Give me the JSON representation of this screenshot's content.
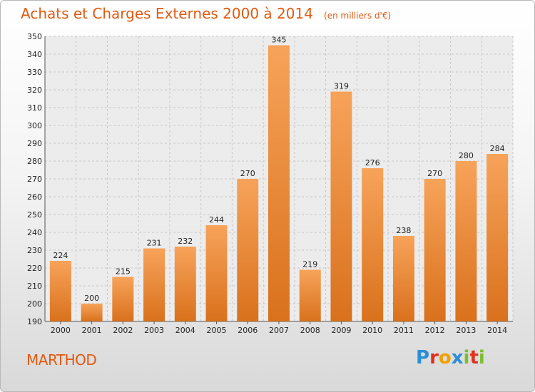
{
  "header": {
    "title": "Achats et Charges Externes 2000 à 2014",
    "subtitle": "(en milliers d'€)"
  },
  "footer": {
    "commune": "MARTHOD",
    "logo": "Proxiti"
  },
  "colors": {
    "accent": "#e05a12",
    "bar_top": "#f7a35a",
    "bar_bottom": "#d9711c",
    "logo_letters": [
      "#2a8fd6",
      "#e0301e",
      "#f0a000",
      "#2a8fd6",
      "#7cbf2a",
      "#e0301e",
      "#7cbf2a"
    ]
  },
  "chart_data": {
    "type": "bar",
    "title": "Achats et Charges Externes 2000 à 2014",
    "subtitle": "(en milliers d'€)",
    "categories": [
      "2000",
      "2001",
      "2002",
      "2003",
      "2004",
      "2005",
      "2006",
      "2007",
      "2008",
      "2009",
      "2010",
      "2011",
      "2012",
      "2013",
      "2014"
    ],
    "values": [
      224,
      200,
      215,
      231,
      232,
      244,
      270,
      345,
      219,
      319,
      276,
      238,
      270,
      280,
      284
    ],
    "ylim": [
      190,
      350
    ],
    "yticks": [
      190,
      200,
      210,
      220,
      230,
      240,
      250,
      260,
      270,
      280,
      290,
      300,
      310,
      320,
      330,
      340,
      350
    ],
    "grid": true,
    "xlabel": "",
    "ylabel": ""
  }
}
